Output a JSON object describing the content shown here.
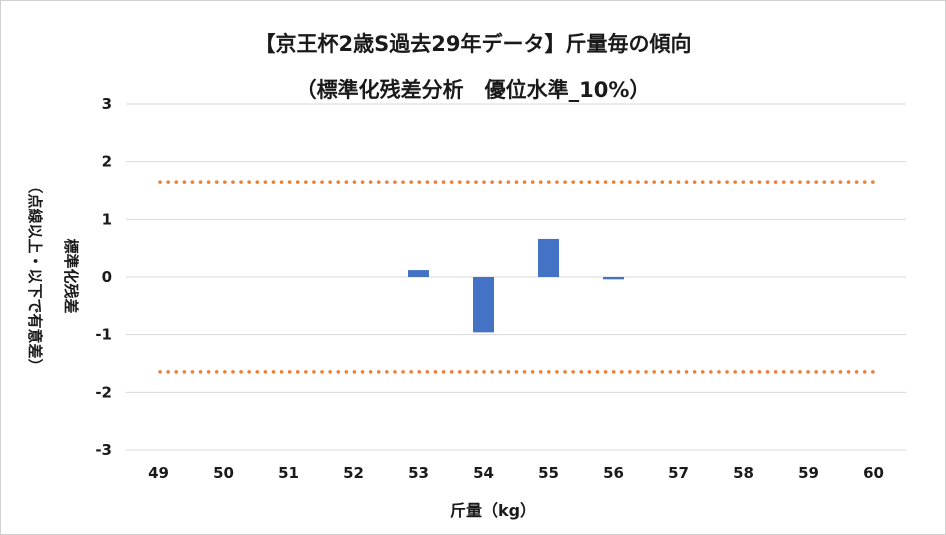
{
  "chart_data": {
    "type": "bar",
    "title_line1": "【京王杯2歳S過去29年データ】斤量毎の傾向",
    "title_line2": "（標準化残差分析　優位水準_10%）",
    "xlabel": "斤量（kg）",
    "ylabel_line1": "標準化残差",
    "ylabel_line2": "（点線以上・以下で有意差）",
    "categories": [
      "49",
      "50",
      "51",
      "52",
      "53",
      "54",
      "55",
      "56",
      "57",
      "58",
      "59",
      "60"
    ],
    "values": [
      null,
      null,
      null,
      null,
      0.12,
      -0.96,
      0.66,
      -0.04,
      null,
      null,
      null,
      null
    ],
    "ylim": [
      -3,
      3
    ],
    "yticks": [
      3,
      2,
      1,
      0,
      -1,
      -2,
      -3
    ],
    "ytick_labels": [
      "3",
      "2",
      "1",
      "0",
      "-1",
      "-2",
      "-3"
    ],
    "threshold_upper": 1.645,
    "threshold_lower": -1.645,
    "grid": true,
    "legend": "none",
    "colors": {
      "bar": "#4472c4",
      "threshold": "#ed7d31",
      "grid": "#d9d9d9"
    }
  }
}
